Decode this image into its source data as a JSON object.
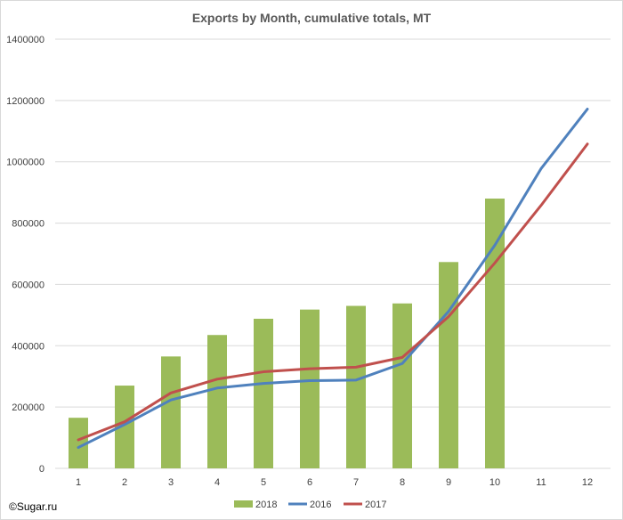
{
  "copyright": "©Sugar.ru",
  "colors": {
    "2018": "#9bbb59",
    "2016": "#4f81bd",
    "2017": "#c0504d",
    "grid": "#d9d9d9",
    "text": "#404040"
  },
  "chart_data": {
    "type": "bar+line",
    "title": "Exports by Month, cumulative totals, MT",
    "xlabel": "",
    "ylabel": "",
    "categories": [
      "1",
      "2",
      "3",
      "4",
      "5",
      "6",
      "7",
      "8",
      "9",
      "10",
      "11",
      "12"
    ],
    "ylim": [
      0,
      1400000
    ],
    "yticks": [
      "0",
      "200000",
      "400000",
      "600000",
      "800000",
      "1000000",
      "1200000",
      "1400000"
    ],
    "grid": true,
    "legend_position": "bottom",
    "series": [
      {
        "name": "2018",
        "kind": "bar",
        "color": "#9bbb59",
        "values": [
          165000,
          270000,
          365000,
          435000,
          488000,
          518000,
          530000,
          538000,
          673000,
          880000,
          null,
          null
        ]
      },
      {
        "name": "2016",
        "kind": "line",
        "color": "#4f81bd",
        "values": [
          68000,
          143000,
          223000,
          262000,
          277000,
          286000,
          288000,
          342000,
          512000,
          728000,
          978000,
          1172000
        ]
      },
      {
        "name": "2017",
        "kind": "line",
        "color": "#c0504d",
        "values": [
          93000,
          152000,
          246000,
          291000,
          315000,
          325000,
          330000,
          362000,
          495000,
          670000,
          858000,
          1058000
        ]
      }
    ]
  }
}
